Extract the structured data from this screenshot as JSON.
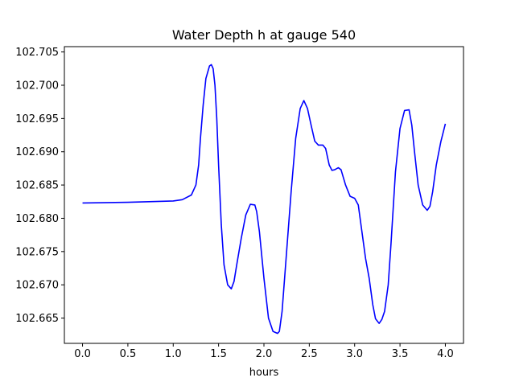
{
  "chart_data": {
    "type": "line",
    "title": "Water Depth h at gauge 540",
    "xlabel": "hours",
    "ylabel": "",
    "xlim": [
      -0.2,
      4.2
    ],
    "ylim": [
      102.6612,
      102.7058
    ],
    "x_ticks": [
      0.0,
      0.5,
      1.0,
      1.5,
      2.0,
      2.5,
      3.0,
      3.5,
      4.0
    ],
    "x_tick_labels": [
      "0.0",
      "0.5",
      "1.0",
      "1.5",
      "2.0",
      "2.5",
      "3.0",
      "3.5",
      "4.0"
    ],
    "y_ticks": [
      102.665,
      102.67,
      102.675,
      102.68,
      102.685,
      102.69,
      102.695,
      102.7,
      102.705
    ],
    "y_tick_labels": [
      "102.665",
      "102.670",
      "102.675",
      "102.680",
      "102.685",
      "102.690",
      "102.695",
      "102.700",
      "102.705"
    ],
    "grid": false,
    "legend": "none",
    "series": [
      {
        "color": "#0000ff",
        "x": [
          0.0,
          0.5,
          1.0,
          1.1,
          1.2,
          1.25,
          1.28,
          1.3,
          1.33,
          1.36,
          1.4,
          1.42,
          1.44,
          1.46,
          1.48,
          1.5,
          1.53,
          1.56,
          1.6,
          1.64,
          1.67,
          1.7,
          1.75,
          1.8,
          1.85,
          1.9,
          1.92,
          1.95,
          2.0,
          2.05,
          2.1,
          2.15,
          2.17,
          2.2,
          2.25,
          2.3,
          2.35,
          2.4,
          2.44,
          2.48,
          2.52,
          2.56,
          2.6,
          2.65,
          2.68,
          2.72,
          2.75,
          2.78,
          2.82,
          2.85,
          2.9,
          2.95,
          3.0,
          3.04,
          3.08,
          3.12,
          3.16,
          3.2,
          3.23,
          3.27,
          3.3,
          3.33,
          3.37,
          3.4,
          3.45,
          3.5,
          3.55,
          3.6,
          3.63,
          3.66,
          3.7,
          3.75,
          3.8,
          3.83,
          3.86,
          3.9,
          3.95,
          4.0
        ],
        "y": [
          102.6823,
          102.6824,
          102.6826,
          102.6828,
          102.6835,
          102.685,
          102.688,
          102.692,
          102.697,
          102.701,
          102.7029,
          102.7031,
          102.7025,
          102.7,
          102.695,
          102.688,
          102.679,
          102.673,
          102.67,
          102.6694,
          102.6705,
          102.673,
          102.677,
          102.6805,
          102.6821,
          102.682,
          102.681,
          102.678,
          102.671,
          102.665,
          102.663,
          102.6627,
          102.663,
          102.666,
          102.675,
          102.684,
          102.692,
          102.6965,
          102.6977,
          102.6965,
          102.694,
          102.6916,
          102.691,
          102.691,
          102.6905,
          102.688,
          102.6872,
          102.6873,
          102.6876,
          102.6873,
          102.685,
          102.6833,
          102.683,
          102.682,
          102.678,
          102.674,
          102.671,
          102.667,
          102.6649,
          102.6642,
          102.6648,
          102.666,
          102.67,
          102.676,
          102.687,
          102.6935,
          102.6962,
          102.6963,
          102.694,
          102.69,
          102.685,
          102.682,
          102.6812,
          102.6818,
          102.684,
          102.688,
          102.6915,
          102.6942
        ]
      }
    ]
  }
}
